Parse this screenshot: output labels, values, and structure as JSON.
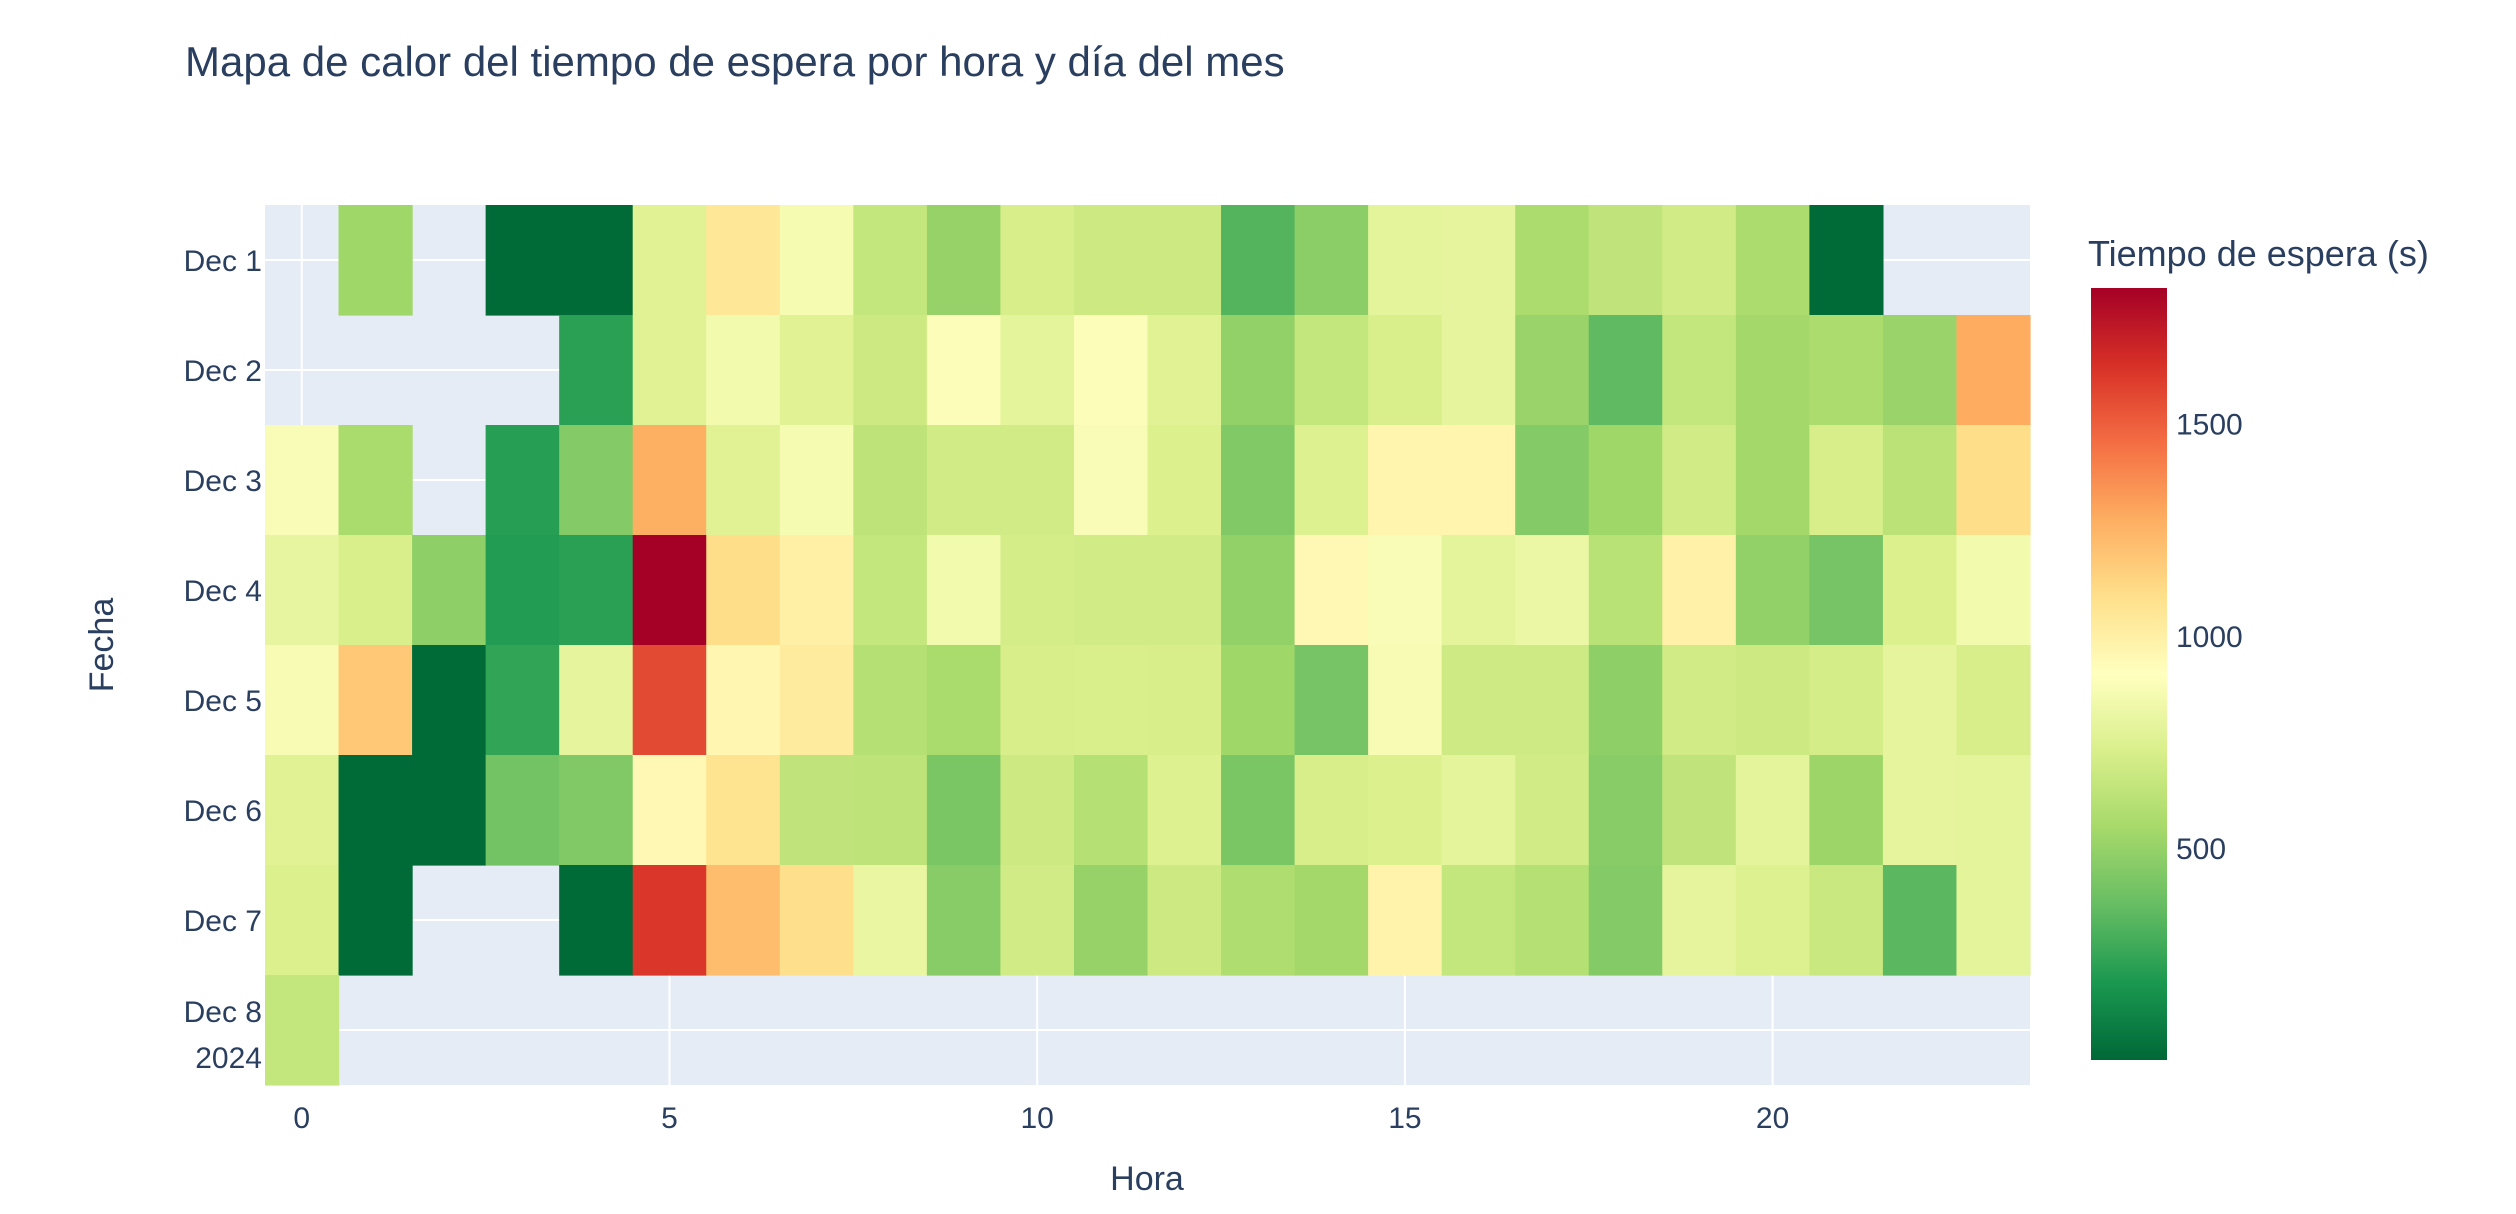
{
  "chart_data": {
    "type": "heatmap",
    "title": "Mapa de calor del tiempo de espera por hora y día del mes",
    "xlabel": "Hora",
    "ylabel": "Fecha",
    "colorbar_title": "Tiempo de espera (s)",
    "colorscale": "RdYlGn (reversed)",
    "x_range": [
      -0.5,
      23.5
    ],
    "x_ticks": [
      0,
      5,
      10,
      15,
      20
    ],
    "y_categories": [
      "Dec 1",
      "Dec 2",
      "Dec 3",
      "Dec 4",
      "Dec 5",
      "Dec 6",
      "Dec 7",
      "Dec 8"
    ],
    "y_tick_year": "2024",
    "z_range": [
      0,
      1820
    ],
    "colorbar_ticks": [
      500,
      1000,
      1500
    ],
    "plot_bgcolor": "#e5ecf6",
    "grid": true,
    "z": [
      [
        null,
        530,
        null,
        10,
        10,
        760,
        1050,
        860,
        650,
        500,
        720,
        680,
        680,
        320,
        470,
        780,
        790,
        570,
        640,
        700,
        570,
        10,
        null,
        null
      ],
      [
        null,
        null,
        null,
        null,
        220,
        760,
        850,
        760,
        680,
        890,
        780,
        890,
        760,
        490,
        650,
        730,
        790,
        510,
        350,
        650,
        540,
        570,
        510,
        1280
      ],
      [
        880,
        560,
        null,
        210,
        450,
        1270,
        760,
        860,
        630,
        700,
        700,
        880,
        740,
        440,
        750,
        970,
        970,
        450,
        530,
        700,
        540,
        720,
        620,
        1100
      ],
      [
        800,
        730,
        480,
        200,
        220,
        1820,
        1100,
        1000,
        650,
        850,
        710,
        700,
        700,
        490,
        950,
        880,
        780,
        820,
        610,
        990,
        490,
        410,
        740,
        850
      ],
      [
        870,
        1180,
        10,
        240,
        790,
        1560,
        960,
        1030,
        600,
        560,
        720,
        730,
        720,
        530,
        410,
        870,
        690,
        690,
        480,
        700,
        680,
        710,
        790,
        720
      ],
      [
        760,
        10,
        10,
        400,
        440,
        950,
        1070,
        640,
        630,
        420,
        680,
        600,
        750,
        420,
        720,
        740,
        780,
        700,
        460,
        640,
        780,
        520,
        790,
        780
      ],
      [
        740,
        10,
        null,
        null,
        10,
        1620,
        1220,
        1090,
        810,
        460,
        700,
        500,
        680,
        580,
        540,
        980,
        650,
        600,
        450,
        790,
        750,
        670,
        340,
        780
      ],
      [
        650,
        null,
        null,
        null,
        null,
        null,
        null,
        null,
        null,
        null,
        null,
        null,
        null,
        null,
        null,
        null,
        null,
        null,
        null,
        null,
        null,
        null,
        null,
        null
      ]
    ]
  }
}
